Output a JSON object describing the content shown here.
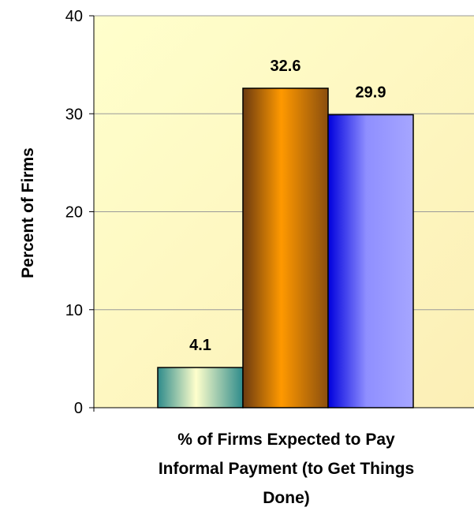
{
  "chart_data": {
    "type": "bar",
    "categories": [
      "% of Firms Expected to Pay Informal Payment (to Get Things Done)"
    ],
    "series": [
      {
        "values": [
          4.1
        ],
        "color": "#2E8B8B"
      },
      {
        "values": [
          32.6
        ],
        "color": "#FF9900"
      },
      {
        "values": [
          29.9
        ],
        "color": "#8F8FFF"
      }
    ],
    "data_labels": [
      "4.1",
      "32.6",
      "29.9"
    ],
    "ylabel": "Percent of Firms",
    "xlabel_lines": [
      "% of Firms Expected to Pay",
      "Informal Payment (to Get Things",
      "Done)"
    ],
    "ylim": [
      0,
      40
    ],
    "yticks": [
      0,
      10,
      20,
      30,
      40
    ],
    "grid": true,
    "legend": "none",
    "colors": {
      "plot_background": "#FFFFCC",
      "grid": "#999999",
      "bar_edge": "#000000"
    }
  }
}
